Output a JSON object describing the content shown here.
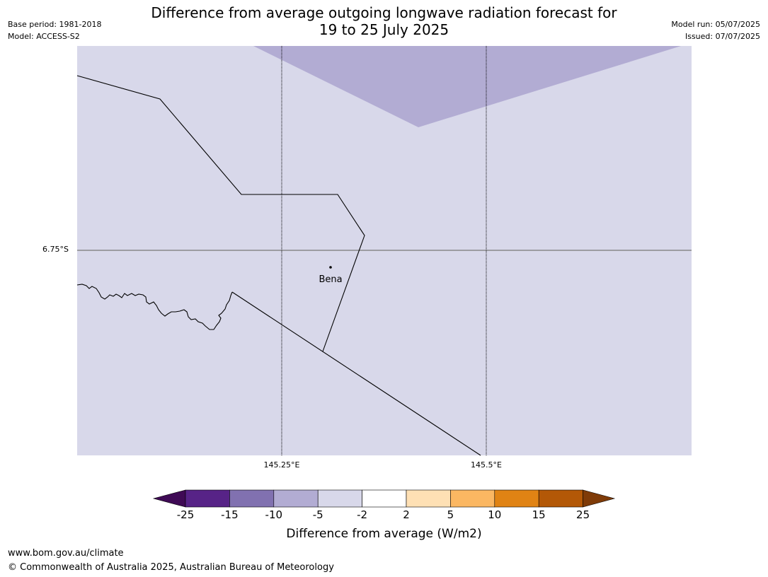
{
  "title": {
    "line1": "Difference from average outgoing longwave radiation forecast for",
    "line2": "19 to 25 July 2025"
  },
  "meta_left": {
    "base_period": "Base period: 1981-2018",
    "model": "Model: ACCESS-S2"
  },
  "meta_right": {
    "model_run": "Model run: 05/07/2025",
    "issued": "Issued: 07/07/2025"
  },
  "map": {
    "latitude_label": "6.75°S",
    "longitude_labels": [
      "145.25°E",
      "145.5°E"
    ],
    "place": {
      "name": "Bena"
    },
    "background_color": "#d8d8ea",
    "anomaly_region_color": "#b2acd3"
  },
  "colorbar": {
    "ticks": [
      "-25",
      "-15",
      "-10",
      "-5",
      "-2",
      "2",
      "5",
      "10",
      "15",
      "25"
    ],
    "colors": [
      "#3f0a55",
      "#572387",
      "#8171b0",
      "#b2acd3",
      "#d8d8ea",
      "#ffffff",
      "#fee0b4",
      "#fbb762",
      "#e08314",
      "#b35807",
      "#7f3b08"
    ],
    "label": "Difference from average (W/m2)"
  },
  "footer": {
    "url": "www.bom.gov.au/climate",
    "copyright": "© Commonwealth of Australia 2025, Australian Bureau of Meteorology"
  }
}
